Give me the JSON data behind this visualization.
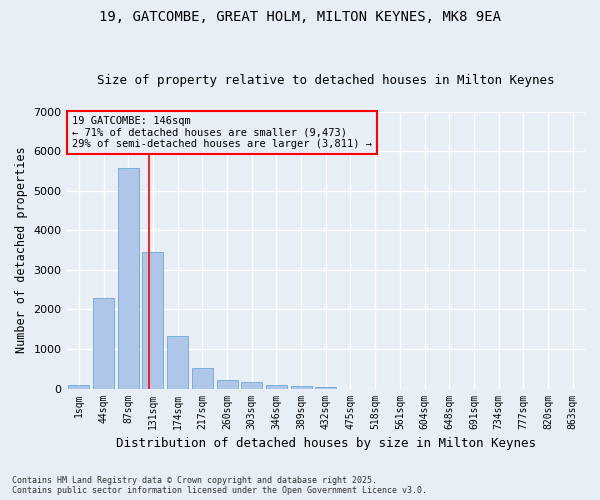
{
  "title_line1": "19, GATCOMBE, GREAT HOLM, MILTON KEYNES, MK8 9EA",
  "title_line2": "Size of property relative to detached houses in Milton Keynes",
  "xlabel": "Distribution of detached houses by size in Milton Keynes",
  "ylabel": "Number of detached properties",
  "footnote": "Contains HM Land Registry data © Crown copyright and database right 2025.\nContains public sector information licensed under the Open Government Licence v3.0.",
  "bar_labels": [
    "1sqm",
    "44sqm",
    "87sqm",
    "131sqm",
    "174sqm",
    "217sqm",
    "260sqm",
    "303sqm",
    "346sqm",
    "389sqm",
    "432sqm",
    "475sqm",
    "518sqm",
    "561sqm",
    "604sqm",
    "648sqm",
    "691sqm",
    "734sqm",
    "777sqm",
    "820sqm",
    "863sqm"
  ],
  "bar_values": [
    80,
    2300,
    5580,
    3450,
    1320,
    530,
    210,
    175,
    100,
    55,
    30,
    0,
    0,
    0,
    0,
    0,
    0,
    0,
    0,
    0,
    0
  ],
  "bar_color": "#aec6e8",
  "bar_edge_color": "#5a9fd4",
  "vline_x": 2.85,
  "vline_color": "red",
  "annotation_text": "19 GATCOMBE: 146sqm\n← 71% of detached houses are smaller (9,473)\n29% of semi-detached houses are larger (3,811) →",
  "annotation_box_color": "red",
  "ylim": [
    0,
    7000
  ],
  "yticks": [
    0,
    1000,
    2000,
    3000,
    4000,
    5000,
    6000,
    7000
  ],
  "bg_color": "#e8eef5",
  "grid_color": "#ffffff",
  "title_fontsize": 10,
  "subtitle_fontsize": 9,
  "tick_fontsize": 7,
  "ylabel_fontsize": 8.5,
  "xlabel_fontsize": 9
}
